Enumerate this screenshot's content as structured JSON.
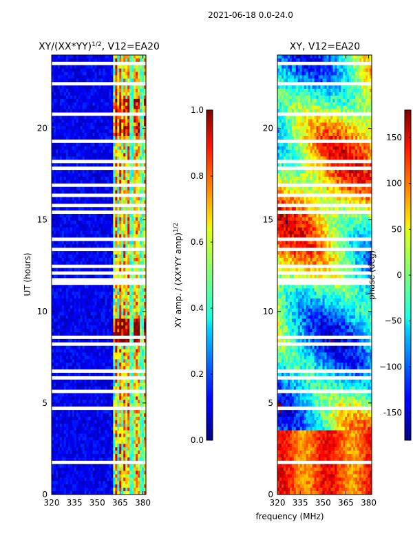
{
  "suptitle": "2021-06-18 0.0-24.0",
  "chart_data": [
    {
      "type": "heatmap",
      "title_main": "XY/(XX*YY)",
      "title_sup": "1/2",
      "title_suffix": ", V12=EA20",
      "ylabel": "UT (hours)",
      "xlabel": "",
      "xlim": [
        320,
        382
      ],
      "ylim": [
        0,
        24
      ],
      "xticks": [
        "320",
        "335",
        "350",
        "365",
        "380"
      ],
      "yticks": [
        "0",
        "5",
        "10",
        "15",
        "20"
      ],
      "colorbar": {
        "label_main": "XY amp. / (XX*YY amp)",
        "label_sup": "1/2",
        "range": [
          0.0,
          1.0
        ],
        "ticks": [
          "0.0",
          "0.2",
          "0.4",
          "0.6",
          "0.8",
          "1.0"
        ],
        "colormap": "jet"
      }
    },
    {
      "type": "heatmap",
      "title_main": "XY, V12=EA20",
      "xlabel": "frequency (MHz)",
      "ylabel": "",
      "xlim": [
        320,
        382
      ],
      "ylim": [
        0,
        24
      ],
      "xticks": [
        "320",
        "335",
        "350",
        "365",
        "380"
      ],
      "yticks": [
        "0",
        "5",
        "10",
        "15",
        "20"
      ],
      "colorbar": {
        "label_main": "phase (deg)",
        "range": [
          -180,
          180
        ],
        "ticks": [
          "-150",
          "−100",
          "−50",
          "0",
          "50",
          "100",
          "150"
        ],
        "colormap": "jet"
      }
    }
  ]
}
